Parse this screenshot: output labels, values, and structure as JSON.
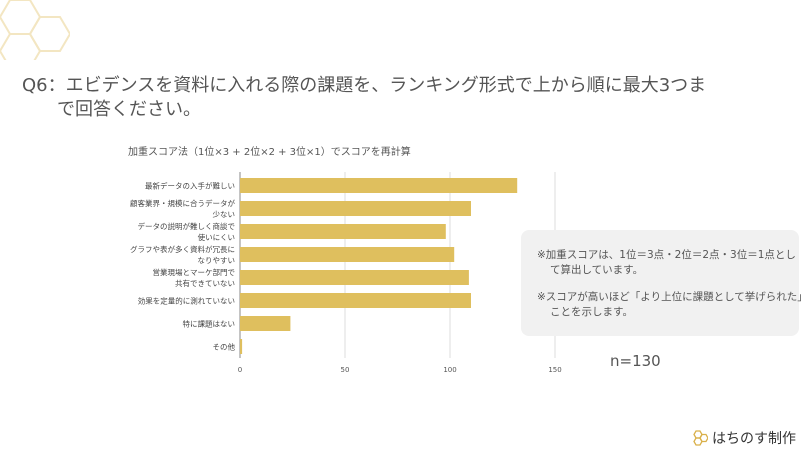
{
  "question": {
    "line1": "Q6：エビデンスを資料に入れる際の課題を、ランキング形式で上から順に最大3つま",
    "line2": "で回答ください。"
  },
  "note": {
    "line1": "※加重スコアは、1位＝3点・2位＝2点・3位＝1点として算出しています。",
    "line2": "※スコアが高いほど「より上位に課題として挙げられた」ことを示します。"
  },
  "sample_size": "n=130",
  "brand": "はちのす制作",
  "colors": {
    "bar": "#dfbf5e",
    "accent": "#e2c36a"
  },
  "chart_data": {
    "type": "bar",
    "orientation": "horizontal",
    "title": "加重スコア法（1位×3 + 2位×2 + 3位×1）でスコアを再計算",
    "categories": [
      [
        "最新データの入手が難しい"
      ],
      [
        "顧客業界・規模に合うデータが",
        "少ない"
      ],
      [
        "データの説明が難しく商談で",
        "使いにくい"
      ],
      [
        "グラフや表が多く資料が冗長に",
        "なりやすい"
      ],
      [
        "営業現場とマーケ部門で",
        "共有できていない"
      ],
      [
        "効果を定量的に測れていない"
      ],
      [
        "特に課題はない"
      ],
      [
        "その他"
      ]
    ],
    "values": [
      132,
      110,
      98,
      102,
      109,
      110,
      24,
      1
    ],
    "xlim": [
      0,
      150
    ],
    "xticks": [
      0,
      50,
      100,
      150
    ],
    "grid": true,
    "xlabel": "",
    "ylabel": ""
  }
}
